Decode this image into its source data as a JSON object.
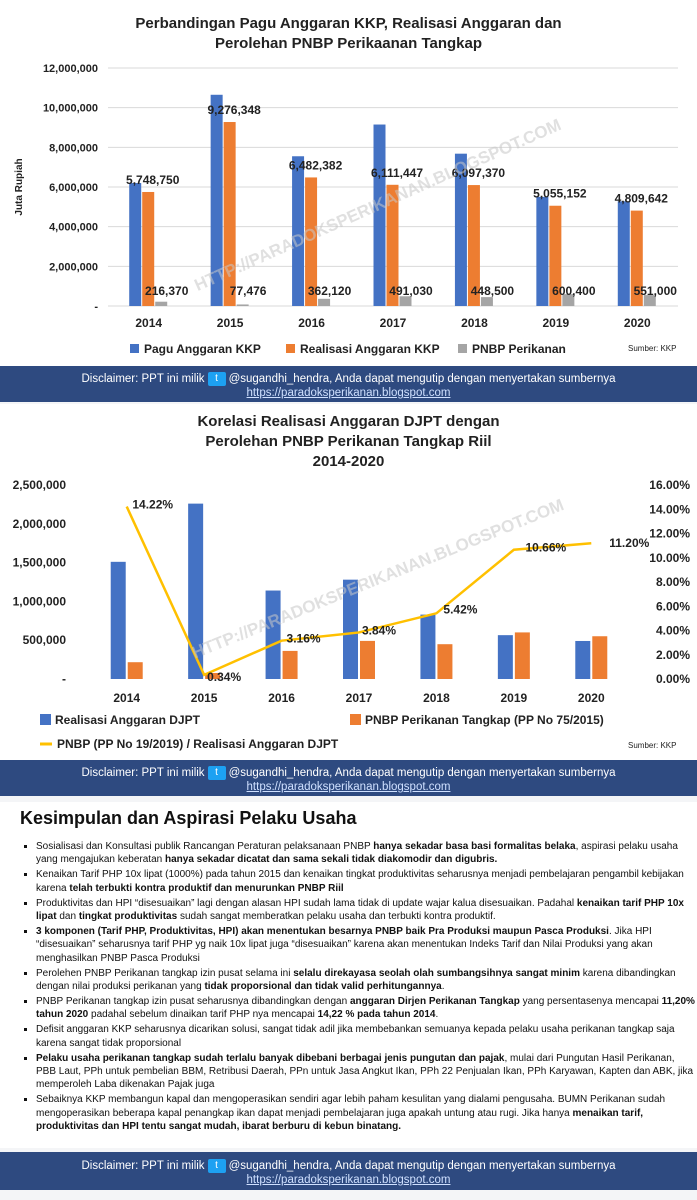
{
  "chart1": {
    "title_line1": "Perbandingan Pagu Anggaran KKP,  Realisasi Anggaran dan",
    "title_line2": "Perolehan PNBP Perikaanan Tangkap",
    "ylabel": "Juta Rupiah",
    "source": "Sumber: KKP",
    "watermark": "HTTP://PARADOKSPERIKANAN.BLOGSPOT.COM",
    "colors": {
      "pagu": "#4472c4",
      "realisasi": "#ed7d31",
      "pnbp": "#a5a5a5"
    }
  },
  "chart2": {
    "title_line1": "Korelasi Realisasi Anggaran DJPT dengan",
    "title_line2": "Perolehan PNBP Perikanan Tangkap Riil",
    "title_line3": "2014-2020",
    "source": "Sumber: KKP",
    "watermark": "HTTP://PARADOKSPERIKANAN.BLOGSPOT.COM",
    "colors": {
      "realisasi": "#4472c4",
      "pnbp": "#ed7d31",
      "ratio": "#ffc000"
    }
  },
  "chart_data": [
    {
      "type": "bar",
      "title": "Perbandingan Pagu Anggaran KKP,  Realisasi Anggaran dan Perolehan PNBP Perikaanan Tangkap",
      "ylabel": "Juta Rupiah",
      "categories": [
        "2014",
        "2015",
        "2016",
        "2017",
        "2018",
        "2019",
        "2020"
      ],
      "series": [
        {
          "name": "Pagu Anggaran KKP",
          "values": [
            6200000,
            10650000,
            7550000,
            9150000,
            7680000,
            5500000,
            5280000
          ]
        },
        {
          "name": "Realisasi Anggaran KKP",
          "values": [
            5748750,
            9276348,
            6482382,
            6111447,
            6097370,
            5055152,
            4809642
          ]
        },
        {
          "name": "PNBP Perikanan",
          "values": [
            216370,
            77476,
            362120,
            491030,
            448500,
            600400,
            551000
          ]
        }
      ],
      "data_labels_realisasi": [
        "5,748,750",
        "9,276,348",
        "6,482,382",
        "6,111,447",
        "6,097,370",
        "5,055,152",
        "4,809,642"
      ],
      "data_labels_pnbp": [
        "216,370",
        "77,476",
        "362,120",
        "491,030",
        "448,500",
        "600,400",
        "551,000"
      ],
      "ylim": [
        0,
        12000000
      ],
      "yticks": [
        "-",
        "2,000,000",
        "4,000,000",
        "6,000,000",
        "8,000,000",
        "10,000,000",
        "12,000,000"
      ],
      "grid": true,
      "legend": "bottom"
    },
    {
      "type": "bar",
      "title": "Korelasi Realisasi Anggaran DJPT dengan Perolehan PNBP Perikanan Tangkap Riil 2014-2020",
      "categories": [
        "2014",
        "2015",
        "2016",
        "2017",
        "2018",
        "2019",
        "2020"
      ],
      "series": [
        {
          "name": "Realisasi Anggaran DJPT",
          "values": [
            1510000,
            2260000,
            1140000,
            1280000,
            830000,
            565000,
            490000
          ]
        },
        {
          "name": "PNBP Perikanan Tangkap (PP No 75/2015)",
          "values": [
            216370,
            77476,
            362120,
            491030,
            448500,
            600400,
            551000
          ]
        },
        {
          "name": "PNBP (PP No 19/2019) / Realisasi Anggaran DJPT",
          "type": "line",
          "axis": "right",
          "values": [
            14.22,
            0.34,
            3.16,
            3.84,
            5.42,
            10.66,
            11.2
          ]
        }
      ],
      "line_labels": [
        "14.22%",
        "0.34%",
        "3.16%",
        "3.84%",
        "5.42%",
        "10.66%",
        "11.20%"
      ],
      "ylim": [
        0,
        2500000
      ],
      "yticks": [
        "-",
        "500,000",
        "1,000,000",
        "1,500,000",
        "2,000,000",
        "2,500,000"
      ],
      "y2lim": [
        0,
        16
      ],
      "y2ticks": [
        "0.00%",
        "2.00%",
        "4.00%",
        "6.00%",
        "8.00%",
        "10.00%",
        "12.00%",
        "14.00%",
        "16.00%"
      ],
      "legend": "bottom"
    }
  ],
  "disclaimer": {
    "prefix": "Disclaimer: PPT ini milik",
    "handle": "@sugandhi_hendra, Anda dapat mengutip dengan menyertakan sumbernya",
    "url": "https://paradoksperikanan.blogspot.com"
  },
  "conclusion": {
    "heading": "Kesimpulan dan Aspirasi Pelaku Usaha",
    "items": [
      [
        [
          "Sosialisasi dan Konsultasi publik Rancangan Peraturan pelaksanaan PNBP ",
          false
        ],
        [
          "hanya sekadar basa basi formalitas belaka",
          true
        ],
        [
          ", aspirasi pelaku usaha yang mengajukan keberatan ",
          false
        ],
        [
          "hanya sekadar dicatat dan sama sekali tidak diakomodir dan digubris.",
          true
        ]
      ],
      [
        [
          "Kenaikan Tarif PHP 10x lipat (1000%) pada tahun 2015 dan kenaikan tingkat produktivitas seharusnya menjadi pembelajaran pengambil kebijakan karena ",
          false
        ],
        [
          "telah terbukti kontra produktif dan menurunkan PNBP Riil",
          true
        ]
      ],
      [
        [
          "Produktivitas dan HPI “disesuaikan” lagi dengan alasan HPI sudah lama tidak di update wajar kalua disesuaikan. Padahal ",
          false
        ],
        [
          "kenaikan tarif PHP 10x lipat",
          true
        ],
        [
          " dan ",
          false
        ],
        [
          "tingkat produktivitas",
          true
        ],
        [
          "  sudah sangat memberatkan pelaku usaha dan terbukti kontra produktif.",
          false
        ]
      ],
      [
        [
          "3 komponen (Tarif PHP, Produktivitas, HPI) akan menentukan besarnya PNBP baik Pra Produksi maupun Pasca Produksi",
          true
        ],
        [
          ". Jika HPI “disesuaikan”  seharusnya tarif PHP yg naik 10x lipat juga “disesuaikan” karena akan menentukan Indeks Tarif dan Nilai Produksi yang akan menghasilkan PNBP Pasca Produksi",
          false
        ]
      ],
      [
        [
          "Perolehen PNBP Perikanan tangkap izin pusat selama ini ",
          false
        ],
        [
          "selalu direkayasa seolah olah sumbangsihnya sangat minim",
          true
        ],
        [
          " karena dibandingkan dengan nilai produksi perikanan yang ",
          false
        ],
        [
          "tidak  proporsional dan tidak valid perhitungannya",
          true
        ],
        [
          ".",
          false
        ]
      ],
      [
        [
          "PNBP Perikanan tangkap izin pusat seharusnya dibandingkan dengan ",
          false
        ],
        [
          "anggaran Dirjen Perikanan Tangkap",
          true
        ],
        [
          " yang persentasenya mencapai ",
          false
        ],
        [
          "11,20% tahun 2020",
          true
        ],
        [
          " padahal sebelum dinaikan tarif PHP nya mencapai ",
          false
        ],
        [
          "14,22 % pada tahun 2014",
          true
        ],
        [
          ".",
          false
        ]
      ],
      [
        [
          "Defisit anggaran KKP seharusnya dicarikan solusi, sangat tidak adil jika membebankan semuanya kepada pelaku usaha perikanan tangkap saja karena sangat tidak proporsional",
          false
        ]
      ],
      [
        [
          "Pelaku usaha perikanan tangkap sudah terlalu banyak dibebani berbagai jenis pungutan dan pajak",
          true
        ],
        [
          ", mulai dari Pungutan Hasil Perikanan, PBB Laut, PPh untuk pembelian BBM, Retribusi Daerah, PPn untuk Jasa Angkut Ikan, PPh 22 Penjualan Ikan, PPh Karyawan, Kapten dan ABK, jika memperoleh Laba dikenakan Pajak juga",
          false
        ]
      ],
      [
        [
          "Sebaiknya KKP membangun kapal dan mengoperasikan sendiri agar lebih paham kesulitan yang dialami pengusaha. BUMN Perikanan sudah mengoperasikan beberapa kapal penangkap ikan dapat menjadi pembelajaran juga apakah untung atau rugi. Jika hanya ",
          false
        ],
        [
          "menaikan tarif, produktivitas dan HPI tentu sangat mudah, ibarat berburu di kebun binatang.",
          true
        ]
      ]
    ]
  }
}
